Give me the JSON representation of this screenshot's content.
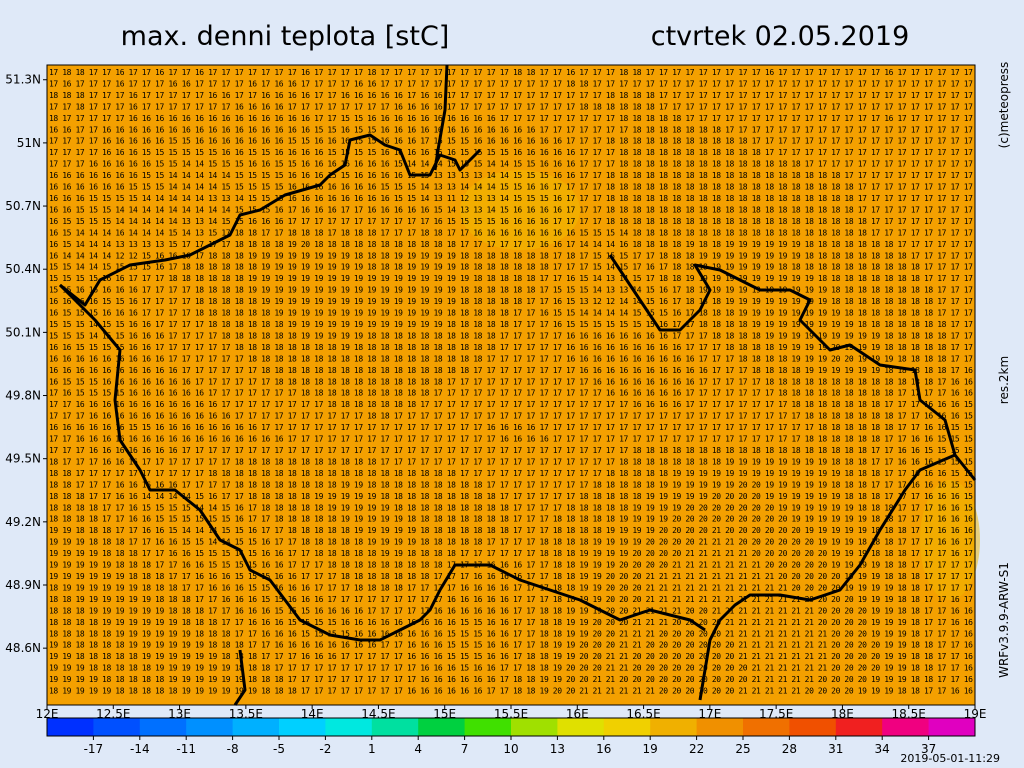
{
  "header": {
    "title": "max. denni teplota [stC]",
    "date": "ctvrtek 02.05.2019"
  },
  "side_labels": {
    "copyright": "(c)meteopress",
    "resolution": "res.2km",
    "model": "WRFv3.9.9-ARW-S1"
  },
  "timestamp": "2019-05-01-11:29",
  "map": {
    "xlim": [
      12,
      19
    ],
    "ylim": [
      48.33,
      51.37
    ],
    "xticks": [
      {
        "value": 12,
        "label": "12E"
      },
      {
        "value": 12.5,
        "label": "12.5E"
      },
      {
        "value": 13,
        "label": "13E"
      },
      {
        "value": 13.5,
        "label": "13.5E"
      },
      {
        "value": 14,
        "label": "14E"
      },
      {
        "value": 14.5,
        "label": "14.5E"
      },
      {
        "value": 15,
        "label": "15E"
      },
      {
        "value": 15.5,
        "label": "15.5E"
      },
      {
        "value": 16,
        "label": "16E"
      },
      {
        "value": 16.5,
        "label": "16.5E"
      },
      {
        "value": 17,
        "label": "17E"
      },
      {
        "value": 17.5,
        "label": "17.5E"
      },
      {
        "value": 18,
        "label": "18E"
      },
      {
        "value": 18.5,
        "label": "18.5E"
      },
      {
        "value": 19,
        "label": "19E"
      }
    ],
    "yticks": [
      {
        "value": 48.6,
        "label": "48.6N"
      },
      {
        "value": 48.9,
        "label": "48.9N"
      },
      {
        "value": 49.2,
        "label": "49.2N"
      },
      {
        "value": 49.5,
        "label": "49.5N"
      },
      {
        "value": 49.8,
        "label": "49.8N"
      },
      {
        "value": 50.1,
        "label": "50.1N"
      },
      {
        "value": 50.4,
        "label": "50.4N"
      },
      {
        "value": 50.7,
        "label": "50.7N"
      },
      {
        "value": 51,
        "label": "51N"
      },
      {
        "value": 51.3,
        "label": "51.3N"
      }
    ],
    "rows": [
      "17 18 18 17 17 16 17 17 16 17 17 16 17 17 17 17 17 17 17 16 17 17 17 17 18 17 17 17 17 17 17 17 17 17 17 18 18 17 17 16 17 17 17 18 18 17 17 17 17 17 17 17 17 17 16 17 17 17 17 17 17 17 17 16 17 17 17 17 17 17",
      "17 16 17 17 17 16 17 17 17 16 16 17 17 17 17 16 17 16 16 17 17 17 17 16 16 17 17 17 17 17 17 17 17 17 17 17 17 17 17 18 18 17 17 17 17 17 17 17 17 17 17 17 17 17 17 17 17 17 17 17 17 17 17 17 17 17 17 17 17 17",
      "18 18 18 17 17 17 16 17 17 17 17 17 16 16 17 17 16 16 16 16 17 17 16 16 16 16 16 17 16 16 17 17 17 17 17 17 17 17 17 17 17 17 18 18 18 18 17 17 17 17 17 17 17 17 17 17 17 17 17 17 17 17 17 17 17 17 17 17 17 17",
      "17 17 18 17 17 17 16 17 17 17 17 17 17 17 16 16 16 16 17 17 17 17 17 17 17 17 16 16 16 16 17 17 17 17 17 17 17 17 17 17 18 18 18 18 18 18 17 17 17 17 17 17 17 17 17 17 17 17 17 17 17 17 17 17 17 17 17 17 17 17",
      "18 17 17 17 17 17 16 16 16 16 16 16 16 16 16 16 16 16 16 16 17 17 15 15 16 16 16 16 16 16 16 16 16 16 17 17 17 17 17 17 17 17 17 18 18 18 18 18 17 17 17 17 17 17 17 17 17 17 17 17 17 17 17 16 17 17 17 17 17 17",
      "16 16 17 17 16 16 16 16 16 16 16 16 16 16 16 16 16 16 16 16 15 15 16 15 15 16 16 16 16 16 16 16 16 16 16 16 16 17 17 17 17 17 17 17 18 18 18 18 18 18 18 17 17 17 17 17 17 17 17 17 17 17 17 17 17 17 17 17 17 17",
      "17 17 17 17 16 16 16 16 16 15 15 16 16 16 16 16 16 16 15 15 16 16 16 15 15 16 16 16 17 16 15 15 16 16 16 16 16 16 16 17 17 17 18 18 18 18 18 18 18 18 18 18 18 17 17 17 17 17 17 17 17 17 17 17 17 17 17 17 17 17",
      "17 17 17 17 16 16 16 15 15 15 15 15 15 16 16 15 15 16 16 16 16 15 15 15 15 16 16 16 16 15 16 15 15 15 15 16 16 16 16 16 17 17 17 18 18 18 18 18 18 18 18 18 18 18 17 17 17 17 17 17 17 17 17 17 17 17 17 17 17 17",
      "17 17 17 16 16 16 16 16 15 15 14 14 15 15 15 16 16 15 15 16 16 16 16 16 16 16 15 14 14 14 15 15 15 14 14 15 15 16 16 16 17 17 17 18 18 18 18 18 18 18 18 18 18 18 18 18 18 17 17 17 17 17 17 17 17 17 17 17 17 17",
      "16 16 16 16 16 16 16 15 15 14 14 14 14 14 15 15 15 15 16 16 16 15 15 16 16 16 16 15 15 13 13 13 13 14 14 15 15 15 16 16 17 17 18 18 18 18 18 18 18 18 18 18 18 18 18 18 18 18 18 18 17 17 17 17 17 17 17 17 17 17",
      "16 16 16 16 16 16 15 15 15 14 14 14 14 15 15 15 15 15 16 16 16 16 16 16 16 15 15 15 14 13 13 14 14 14 15 15 16 16 17 17 17 17 18 18 18 18 18 18 18 18 18 18 18 18 18 18 18 18 18 18 18 17 17 17 17 17 17 17 17 17",
      "16 16 16 15 15 15 15 14 14 14 14 14 13 13 14 15 15 15 16 16 16 16 16 16 16 16 15 15 14 13 11 12 13 13 14 15 15 15 16 17 17 17 18 18 18 18 18 18 18 18 18 18 18 18 18 18 18 18 18 18 18 17 17 17 17 17 17 17 17 17",
      "16 16 15 15 15 14 14 14 14 14 14 14 14 14 15 15 15 16 17 16 16 16 17 17 16 16 16 16 16 15 14 13 13 14 15 16 16 16 16 17 17 17 18 18 18 18 18 18 18 18 18 18 18 18 18 18 18 18 18 18 18 17 17 17 17 17 17 17 17 17",
      "16 15 15 15 15 14 14 14 14 14 13 13 14 15 15 16 16 16 17 17 17 17 17 17 17 17 17 17 17 16 15 15 15 15 16 16 16 16 17 17 17 17 18 18 18 18 18 18 18 18 18 18 18 18 18 18 18 18 18 18 18 18 17 17 17 17 17 17 17 17",
      "16 15 14 14 14 16 14 14 14 15 14 13 15 17 18 18 17 17 18 18 18 17 18 18 18 17 17 17 18 18 17 17 16 16 16 16 16 16 16 16 15 15 15 14 18 18 18 18 18 18 18 18 18 18 18 18 18 18 18 18 18 18 17 17 17 17 17 17 17 17",
      "16 15 14 14 14 13 13 13 13 15 17 17 17 17 18 18 18 18 19 20 18 18 18 18 18 18 18 18 18 18 18 17 17 17 17 17 17 16 16 17 14 14 14 16 18 18 18 18 19 18 18 19 19 19 19 19 19 18 18 18 18 18 18 18 17 17 17 17 17 17",
      "16 14 14 14 14 12 12 15 16 16 16 17 18 18 18 19 19 19 19 19 19 19 19 18 18 18 19 19 19 19 19 18 18 18 18 18 18 18 17 18 17 15 15 15 17 17 18 18 18 19 19 19 19 19 19 19 19 18 18 18 18 18 18 18 18 17 17 17 17 17",
      "15 15 14 14 15 15 15 15 16 17 18 18 18 18 18 18 19 19 19 19 19 19 19 19 18 18 18 19 19 19 19 18 18 18 18 18 18 18 17 17 17 15 14 15 17 16 17 18 18 18 19 19 19 19 19 18 18 18 18 18 18 18 18 18 18 18 17 17 17 17",
      "15 15 15 15 16 16 17 17 17 18 18 18 18 18 18 19 19 19 19 19 19 19 19 19 19 19 19 19 19 19 19 19 18 18 18 18 18 17 17 16 15 14 13 14 15 17 18 18 19 19 19 19 19 19 19 19 19 19 18 18 18 18 18 18 18 18 17 17 17 17",
      "15 15 16 16 16 16 16 17 17 17 17 18 18 18 18 19 19 19 19 19 19 19 19 19 19 19 19 19 19 19 19 18 18 18 18 18 18 17 15 15 15 14 13 13 14 15 16 17 18 19 19 19 19 19 19 19 19 19 19 18 18 18 18 18 18 18 18 17 17 17",
      "16 16 16 16 15 15 16 17 17 17 17 18 18 18 18 18 19 19 19 19 19 19 19 19 19 19 19 19 19 19 19 18 18 18 18 18 17 17 16 15 13 12 12 14 14 15 16 17 18 18 18 19 19 19 19 19 19 19 19 18 18 18 18 18 18 18 18 17 17 17",
      "16 15 15 15 16 16 16 17 17 17 17 18 18 18 18 18 18 19 19 19 19 19 19 19 19 19 19 19 19 19 18 18 18 18 18 17 17 16 15 15 14 14 14 14 15 15 15 16 17 18 18 18 19 19 19 19 19 19 19 19 18 18 18 18 18 18 18 17 17 17",
      "15 15 15 14 15 15 16 16 17 17 17 17 18 18 18 18 18 18 19 19 19 19 19 19 19 19 19 19 19 19 18 18 18 18 18 17 17 17 16 15 15 15 15 15 15 15 16 17 17 18 18 18 18 19 19 19 19 19 19 19 19 18 18 18 18 18 18 18 17 17",
      "15 15 15 14 15 15 16 16 16 17 17 17 17 18 18 18 18 18 18 19 19 19 19 19 18 18 18 18 18 18 18 18 18 18 17 17 17 17 17 16 16 16 16 16 16 16 16 17 17 17 18 18 18 18 19 19 19 19 19 19 19 19 19 18 18 18 18 18 17 17",
      "16 16 15 15 15 15 16 16 17 17 17 17 17 17 18 18 18 18 18 18 18 18 19 18 18 18 18 18 18 18 18 18 18 18 17 17 17 17 17 16 16 16 16 16 16 16 16 16 17 17 17 18 18 18 18 19 19 19 19 20 19 19 19 18 18 18 18 18 17 17",
      "16 16 16 16 16 16 16 16 16 17 17 17 17 17 17 18 18 18 18 18 18 18 18 18 18 18 18 18 18 18 18 18 18 17 17 17 17 17 17 16 16 16 16 16 16 16 16 16 16 17 17 17 18 18 18 18 19 19 19 20 20 19 19 19 18 18 18 18 17 17",
      "16 16 16 16 16 16 16 16 16 16 17 17 17 17 17 17 18 18 18 18 18 18 18 18 18 18 18 18 18 18 18 18 17 17 17 17 17 17 17 17 16 16 16 16 16 16 16 16 16 16 17 17 17 18 18 18 18 19 19 19 19 19 19 18 18 18 18 18 17 16",
      "16 15 15 15 16 16 16 16 16 16 16 17 17 17 17 17 17 18 18 18 18 18 18 18 18 18 18 18 18 18 17 17 17 17 17 17 17 17 17 17 17 16 16 16 16 16 16 16 16 17 17 17 17 17 18 18 18 18 18 18 18 18 18 18 18 18 18 17 16 16",
      "17 16 15 15 15 15 16 16 16 16 16 16 17 17 17 17 17 17 17 18 18 18 18 18 18 18 18 18 18 17 17 17 17 17 17 17 17 17 17 17 17 17 16 16 16 16 16 16 17 17 17 17 17 17 17 18 18 18 18 18 18 18 18 18 17 17 17 17 16 16",
      "17 17 16 16 16 16 16 16 16 16 16 16 16 17 17 17 17 17 17 17 17 18 18 18 18 18 18 18 17 17 17 17 17 17 17 17 17 17 17 17 17 17 17 17 16 16 16 16 17 17 17 17 17 17 17 17 18 18 18 18 18 18 18 17 17 17 16 16 16 15",
      "17 17 17 16 16 16 16 16 16 16 16 16 16 16 17 17 17 17 17 17 17 17 17 17 18 18 17 17 17 17 17 17 17 17 17 17 17 17 17 17 17 17 17 17 17 17 17 17 17 17 17 17 17 17 17 17 17 18 18 18 18 18 18 18 17 17 16 16 16 15",
      "16 16 16 16 16 16 15 15 16 16 16 16 16 16 16 16 17 17 17 17 17 17 17 17 17 17 17 17 17 17 17 17 17 16 16 16 16 17 17 17 17 17 17 17 17 17 17 17 17 17 17 17 17 17 17 17 17 17 18 18 18 18 18 18 17 17 16 16 15 15",
      "17 17 16 16 16 16 16 16 16 16 16 16 16 16 16 16 16 16 17 17 17 17 17 17 17 17 17 17 17 17 17 17 17 17 16 16 16 16 17 17 17 17 17 17 17 17 17 17 17 17 17 17 17 17 17 17 17 18 18 18 18 18 18 17 17 16 16 15 15 15",
      "17 17 17 16 16 16 16 16 16 16 17 17 17 17 17 17 17 17 17 17 17 17 17 17 17 17 17 17 17 17 17 17 17 17 17 17 17 17 17 17 17 17 17 17 18 18 18 18 18 18 18 18 18 18 18 18 18 18 18 18 18 18 17 17 16 16 15 15 15 15",
      "18 17 17 17 16 16 16 17 17 17 17 17 17 17 18 18 18 18 18 18 18 18 18 18 18 17 17 17 17 17 17 17 17 17 17 17 17 17 17 17 17 17 17 18 18 18 18 18 18 18 18 19 19 19 19 19 19 19 19 18 18 18 17 17 16 16 16 15 15 15",
      "18 18 17 17 17 17 17 17 17 17 17 17 18 18 18 18 18 18 18 18 18 18 18 18 18 18 18 18 18 18 18 17 17 17 17 17 17 17 17 17 17 17 18 18 18 18 18 19 19 19 19 19 19 19 19 19 19 19 19 19 18 18 18 17 17 16 16 16 15 15",
      "18 18 17 17 17 16 16 16 16 16 17 17 17 17 18 18 18 18 18 18 18 18 19 19 18 18 18 18 18 18 18 18 18 17 17 17 17 17 17 17 17 18 18 18 18 18 19 19 19 19 19 19 20 20 19 19 19 19 19 18 18 18 17 17 17 16 16 16 15 15",
      "18 18 18 17 17 16 16 14 14 14 14 15 16 17 17 18 18 18 18 18 19 19 19 19 19 18 18 18 18 18 18 18 18 18 17 17 17 17 17 17 18 18 18 18 18 19 19 19 19 19 20 20 20 20 19 19 19 19 19 19 18 18 18 17 17 17 16 16 16 15",
      "18 18 18 18 17 17 16 15 15 15 15 14 14 15 16 17 18 18 18 18 18 19 19 19 19 19 18 18 18 18 18 18 18 18 18 17 17 17 17 18 18 18 18 18 19 19 19 19 20 20 20 20 20 20 20 19 19 19 19 19 19 18 18 18 17 17 17 16 16 15",
      "18 18 18 18 17 17 16 16 15 15 15 15 15 15 16 17 17 18 18 18 18 18 19 19 19 19 19 18 18 18 18 18 18 18 18 17 17 17 18 18 18 18 18 19 19 19 19 20 20 20 20 20 20 20 20 20 19 19 19 19 19 19 18 18 17 17 17 16 16 16",
      "19 19 18 18 18 17 17 16 16 15 14 14 14 15 15 16 17 17 18 18 18 18 18 19 19 19 19 19 18 18 18 18 18 18 18 17 17 17 18 18 18 18 19 19 19 19 20 20 20 20 21 20 20 20 20 20 20 19 19 19 19 19 18 18 18 17 17 16 16 16",
      "19 19 19 18 18 18 17 17 16 16 15 15 14 14 15 15 16 17 17 18 18 18 18 18 19 19 19 19 18 18 18 18 18 17 17 17 17 18 18 18 18 19 19 19 19 20 20 20 20 21 21 21 20 20 20 20 20 20 19 19 19 18 18 18 17 17 17 16 16 17",
      "19 19 19 19 18 18 18 17 17 16 16 15 15 15 14 15 16 16 17 17 18 18 18 18 18 19 19 18 18 18 18 17 17 17 17 17 17 18 18 18 19 19 19 19 20 20 20 20 21 21 21 21 21 20 20 20 20 20 20 19 19 19 18 18 18 17 17 17 16 17",
      "19 19 19 19 19 18 18 18 17 17 16 16 15 15 15 15 16 16 17 17 17 18 18 18 18 18 18 18 18 18 17 17 17 16 16 16 17 17 18 18 19 19 19 20 20 20 20 21 21 21 21 21 21 21 20 20 20 20 20 19 19 19 19 18 18 17 17 17 17 17",
      "19 19 19 19 19 19 18 18 18 17 17 16 16 16 15 15 15 16 16 17 17 17 18 18 18 18 18 18 18 17 17 17 16 16 16 16 17 17 18 18 19 19 20 20 20 21 21 21 21 21 21 21 21 21 21 20 20 20 20 20 19 19 19 18 18 18 17 17 17 17",
      "18 19 19 19 19 19 19 18 18 18 17 17 16 16 16 15 15 16 16 16 17 17 17 18 18 18 18 17 17 17 17 16 16 16 16 17 17 17 18 18 19 19 20 20 20 21 21 21 21 21 21 21 21 21 21 21 20 20 20 20 19 19 19 19 18 18 17 17 17 17",
      "18 18 19 19 19 19 19 19 18 18 18 17 17 16 16 16 15 15 16 16 16 17 17 17 17 17 17 17 17 17 16 16 16 16 16 17 17 17 18 18 19 19 20 20 20 21 21 21 21 21 21 21 21 21 21 21 21 20 20 20 20 19 19 19 18 18 17 17 16 17",
      "18 18 18 19 19 19 19 19 19 18 18 18 17 17 16 16 16 15 15 15 16 16 16 16 17 17 17 17 17 16 16 16 16 16 16 17 17 18 18 19 19 19 20 20 21 21 21 21 20 20 21 21 21 21 21 21 21 21 20 20 20 20 19 19 18 18 17 17 16 16",
      "18 18 18 18 19 19 19 19 19 19 18 18 18 17 17 16 16 16 15 15 15 15 16 16 16 16 16 16 16 16 16 15 15 16 16 17 17 18 18 19 19 20 20 20 21 21 21 20 20 20 20 21 21 21 21 21 21 21 20 20 20 20 19 19 19 18 17 17 16 16",
      "18 18 18 18 18 19 19 19 19 19 19 18 18 18 17 17 16 16 16 15 15 15 15 16 16 16 16 16 16 16 15 15 15 16 16 17 17 18 18 19 19 20 20 21 21 21 20 20 20 20 20 21 21 21 21 21 21 21 21 20 20 20 19 19 19 18 17 17 17 16",
      "19 18 18 18 18 18 19 19 19 19 19 19 18 18 18 17 17 16 16 16 16 16 16 16 16 17 17 16 16 16 15 15 15 16 16 17 17 18 19 19 20 20 20 21 21 20 20 20 20 20 20 20 21 21 21 21 21 21 21 20 20 20 20 19 19 18 18 17 17 16",
      "19 19 18 18 18 18 18 19 19 19 19 19 19 18 18 18 17 17 17 16 16 16 17 17 17 17 17 16 16 16 15 15 15 16 16 17 18 18 19 19 20 20 21 21 20 20 20 20 20 20 20 20 21 21 21 21 21 21 21 20 20 20 20 19 19 18 18 17 17 16",
      "19 19 19 18 18 18 18 18 19 19 19 19 19 19 18 18 18 17 17 17 17 17 17 17 17 17 17 17 16 16 16 15 16 16 17 17 18 18 19 20 20 20 21 21 20 20 20 20 20 20 20 20 20 21 21 21 21 21 21 20 20 20 20 19 19 18 18 17 17 16",
      "19 19 19 19 18 18 18 18 18 19 19 19 19 19 19 18 18 18 17 17 17 17 17 17 17 17 17 17 16 16 16 16 16 16 17 18 18 19 19 20 20 21 21 20 20 20 20 20 20 20 20 20 20 21 21 21 21 21 20 20 20 20 19 19 19 18 18 17 17 16",
      "18 19 19 19 19 18 18 18 18 18 19 19 19 19 19 19 18 18 18 17 17 17 17 17 17 17 17 16 16 16 16 16 16 17 17 18 18 19 20 20 21 21 21 21 21 21 20 20 20 20 20 20 21 21 21 21 21 20 20 20 20 19 19 19 18 18 17 17 16 16"
    ]
  },
  "colorbar": {
    "lim": [
      -20,
      40
    ],
    "ticks": [
      -17,
      -14,
      -11,
      -8,
      -5,
      -2,
      1,
      4,
      7,
      10,
      13,
      16,
      19,
      22,
      25,
      28,
      31,
      34,
      37
    ],
    "colors": [
      "#0030ff",
      "#0050ff",
      "#0070ff",
      "#0090ff",
      "#00b0ff",
      "#00d0ff",
      "#00e8e0",
      "#00e0a0",
      "#00d040",
      "#40e000",
      "#a0e000",
      "#e0e000",
      "#f0d000",
      "#f0b000",
      "#f09000",
      "#f07000",
      "#f05000",
      "#f02020",
      "#f00080",
      "#e000c0"
    ]
  }
}
